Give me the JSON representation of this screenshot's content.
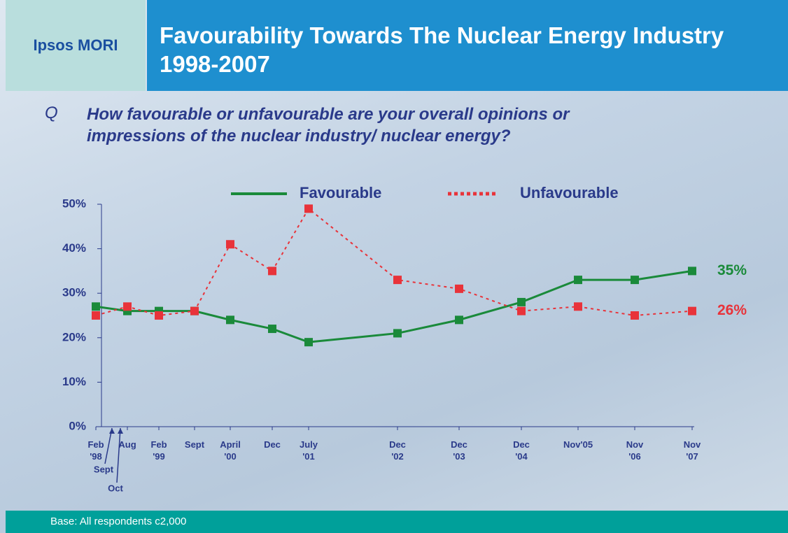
{
  "header": {
    "brand": "Ipsos MORI",
    "title": "Favourability Towards The Nuclear Energy Industry 1998-2007"
  },
  "question": {
    "marker": "Q",
    "text": "How favourable or unfavourable are your overall opinions or impressions of the nuclear industry/ nuclear energy?"
  },
  "chart_data": {
    "type": "line",
    "categories": [
      "Feb\n'98",
      "Aug",
      "Feb\n'99",
      "Sept",
      "April\n'00",
      "Dec",
      "July\n'01",
      "Dec\n'02",
      "Dec\n'03",
      "Dec\n'04",
      "Nov'05",
      "Nov\n'06",
      "Nov\n'07"
    ],
    "series": [
      {
        "name": "Favourable",
        "color": "#1a8a3a",
        "dash": "solid",
        "values": [
          27,
          26,
          26,
          26,
          24,
          22,
          19,
          21,
          24,
          28,
          33,
          33,
          35
        ],
        "value_labels": [
          null,
          null,
          null,
          null,
          null,
          null,
          null,
          null,
          null,
          null,
          null,
          null,
          "35%"
        ]
      },
      {
        "name": "Unfavourable",
        "color": "#e8333a",
        "dash": "dotted",
        "values": [
          25,
          27,
          25,
          26,
          41,
          35,
          49,
          33,
          31,
          26,
          27,
          25,
          26
        ],
        "value_labels": [
          null,
          null,
          null,
          null,
          null,
          null,
          null,
          null,
          null,
          null,
          null,
          null,
          "26%"
        ]
      }
    ],
    "annotations": [
      "Sept",
      "Oct"
    ],
    "ylim": [
      0,
      50
    ],
    "yticks": [
      {
        "value": 0,
        "label": "0%"
      },
      {
        "value": 10,
        "label": "10%"
      },
      {
        "value": 20,
        "label": "20%"
      },
      {
        "value": 30,
        "label": "30%"
      },
      {
        "value": 40,
        "label": "40%"
      },
      {
        "value": 50,
        "label": "50%"
      }
    ],
    "grid": false
  },
  "footer": {
    "base": "Base:  All respondents c2,000"
  }
}
